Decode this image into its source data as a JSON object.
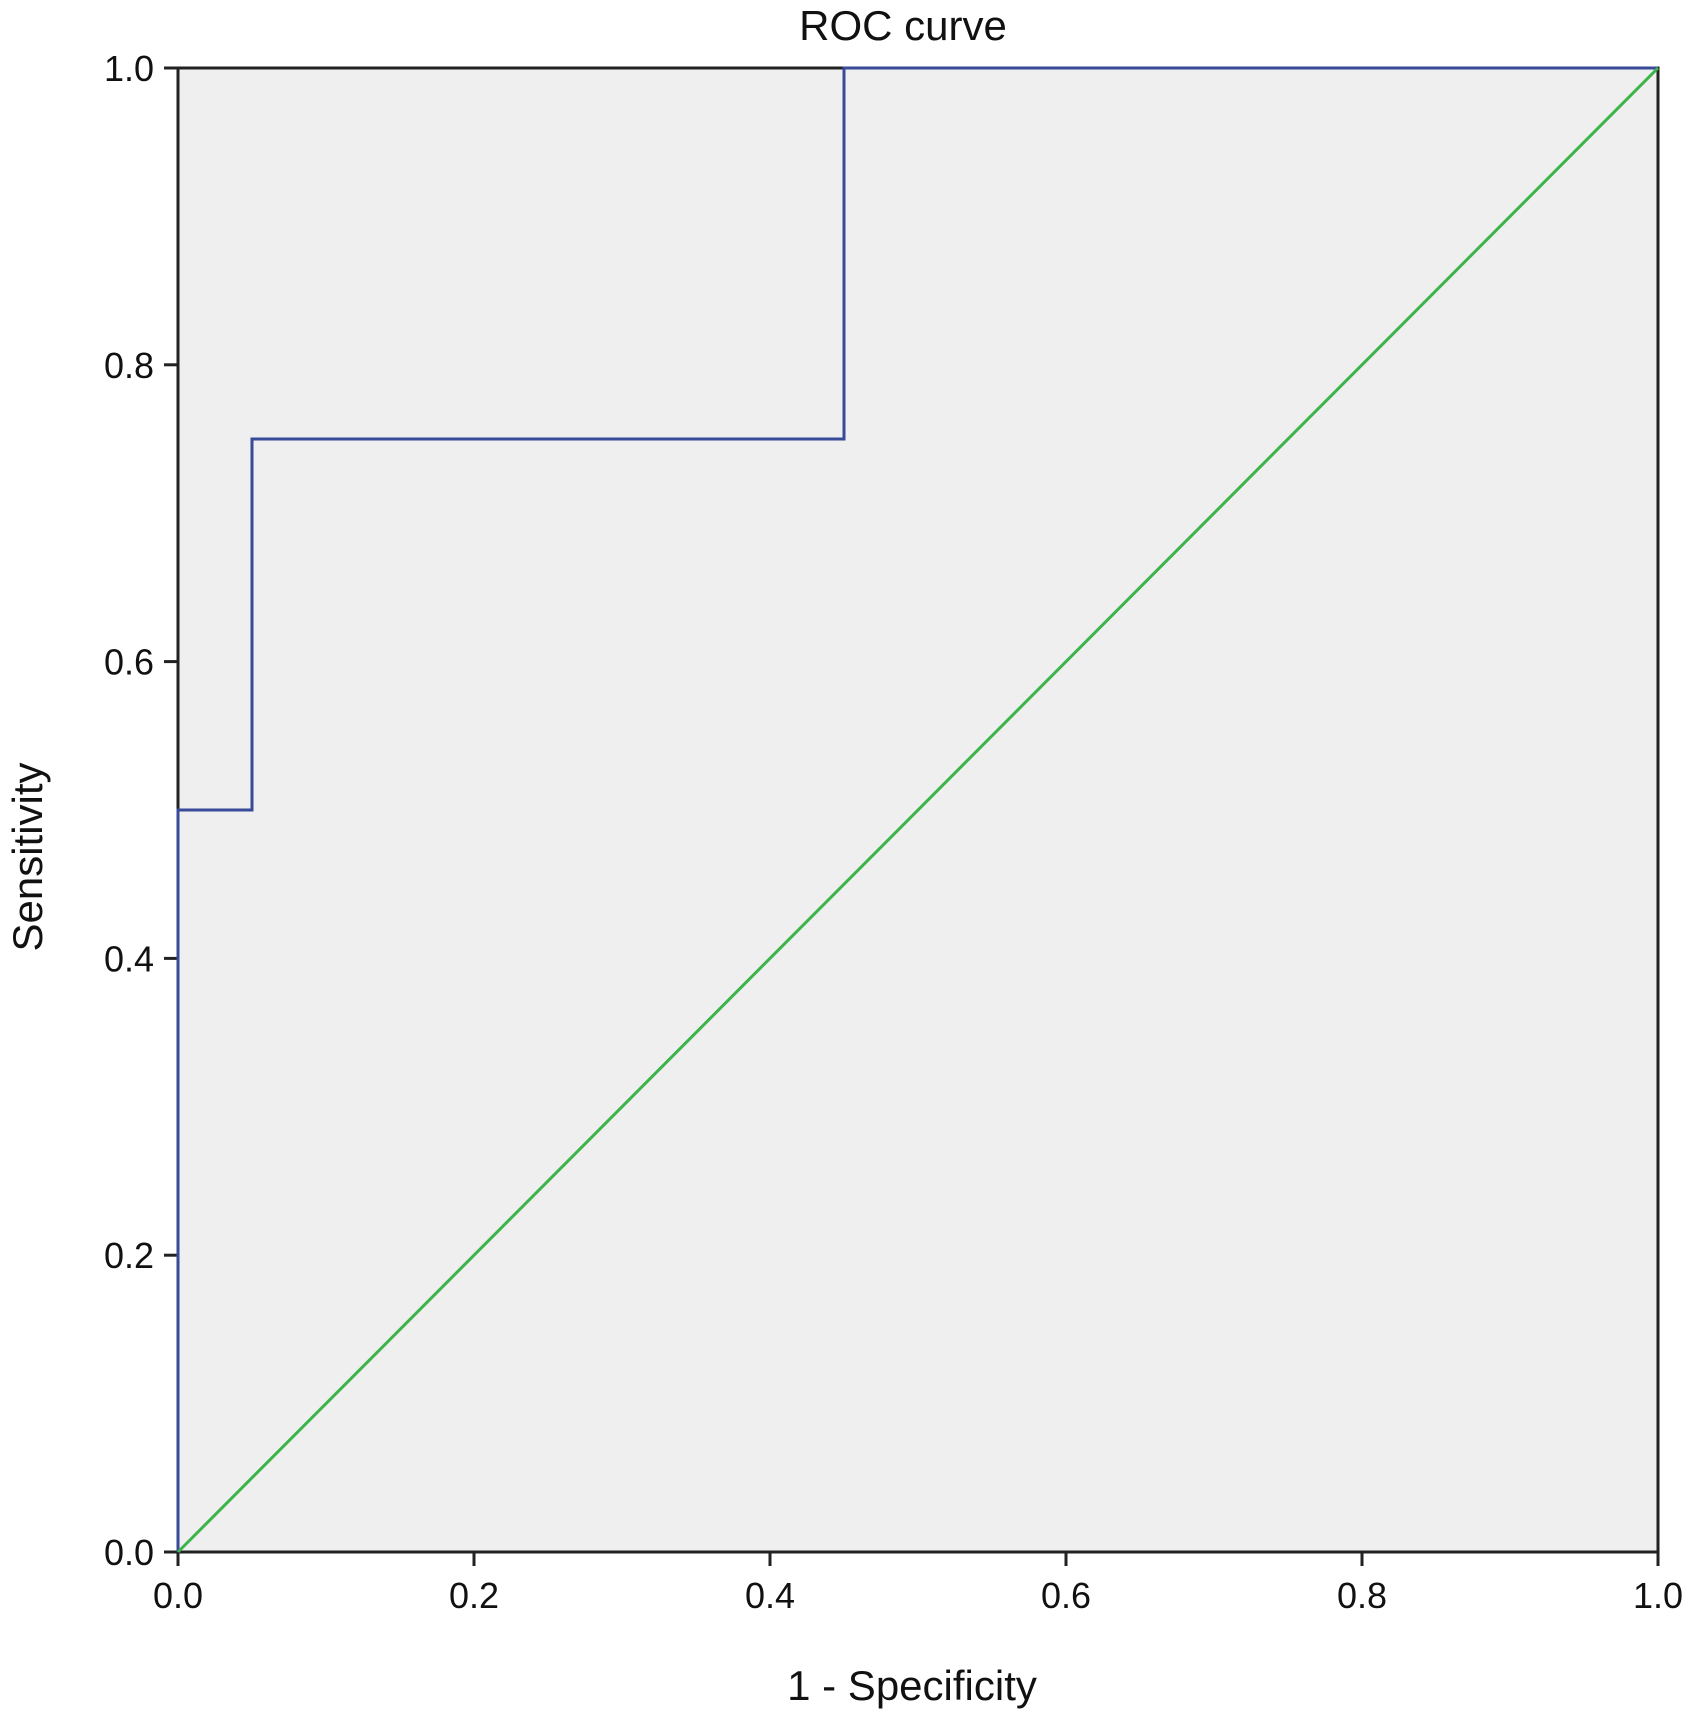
{
  "chart_data": {
    "type": "line",
    "title": "ROC curve",
    "xlabel": "1 - Specificity",
    "ylabel": "Sensitivity",
    "xlim": [
      0,
      1
    ],
    "ylim": [
      0,
      1
    ],
    "x_ticks": [
      "0.0",
      "0.2",
      "0.4",
      "0.6",
      "0.8",
      "1.0"
    ],
    "y_ticks": [
      "0.0",
      "0.2",
      "0.4",
      "0.6",
      "0.8",
      "1.0"
    ],
    "grid": false,
    "legend": "none",
    "plot_background": "#efefef",
    "series": [
      {
        "color": "#3a4a9a",
        "x": [
          0.0,
          0.0,
          0.05,
          0.05,
          0.45,
          0.45,
          1.0
        ],
        "y": [
          0.0,
          0.5,
          0.5,
          0.75,
          0.75,
          1.0,
          1.0
        ]
      },
      {
        "color": "#3cb44a",
        "x": [
          0.0,
          1.0
        ],
        "y": [
          0.0,
          1.0
        ]
      }
    ]
  }
}
